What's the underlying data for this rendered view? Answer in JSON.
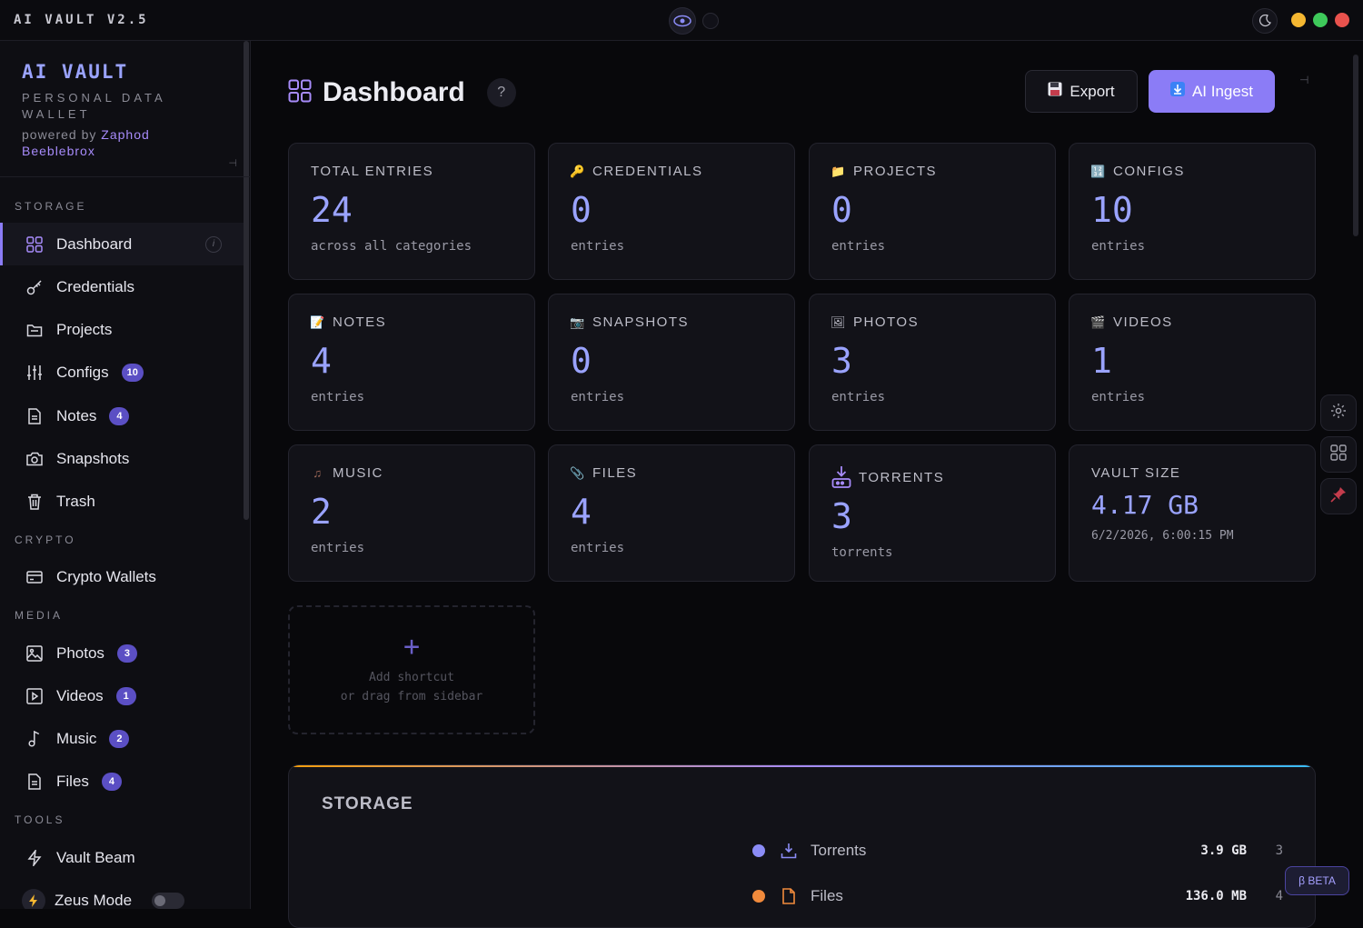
{
  "app": {
    "title": "AI VAULT V2.5"
  },
  "brand": {
    "title": "AI VAULT",
    "subtitle": "PERSONAL DATA WALLET",
    "powered_prefix": "powered by",
    "author": "Zaphod Beeblebrox"
  },
  "sidebar": {
    "sections": {
      "storage": "STORAGE",
      "crypto": "CRYPTO",
      "media": "MEDIA",
      "tools": "TOOLS"
    },
    "items": [
      {
        "label": "Dashboard",
        "icon": "grid-icon",
        "active": true
      },
      {
        "label": "Credentials",
        "icon": "key-icon"
      },
      {
        "label": "Projects",
        "icon": "folder-icon"
      },
      {
        "label": "Configs",
        "icon": "sliders-icon",
        "badge": "10"
      },
      {
        "label": "Notes",
        "icon": "document-icon",
        "badge": "4"
      },
      {
        "label": "Snapshots",
        "icon": "camera-icon"
      },
      {
        "label": "Trash",
        "icon": "trash-icon"
      },
      {
        "label": "Crypto Wallets",
        "icon": "wallet-icon"
      },
      {
        "label": "Photos",
        "icon": "image-icon",
        "badge": "3"
      },
      {
        "label": "Videos",
        "icon": "play-icon",
        "badge": "1"
      },
      {
        "label": "Music",
        "icon": "music-note-icon",
        "badge": "2"
      },
      {
        "label": "Files",
        "icon": "file-icon",
        "badge": "4"
      },
      {
        "label": "Vault Beam",
        "icon": "lightning-icon"
      },
      {
        "label": "Zeus Mode",
        "icon": "zeus-icon",
        "toggle": false
      }
    ],
    "info_glyph": "i"
  },
  "header": {
    "title": "Dashboard",
    "help": "?",
    "export_label": "Export",
    "ingest_label": "AI Ingest"
  },
  "cards": [
    {
      "label": "TOTAL ENTRIES",
      "value": "24",
      "sub": "across all categories"
    },
    {
      "label": "CREDENTIALS",
      "value": "0",
      "sub": "entries",
      "icon": "🔑"
    },
    {
      "label": "PROJECTS",
      "value": "0",
      "sub": "entries",
      "icon": "📁"
    },
    {
      "label": "CONFIGS",
      "value": "10",
      "sub": "entries",
      "icon": "🔢"
    },
    {
      "label": "NOTES",
      "value": "4",
      "sub": "entries",
      "icon": "📝"
    },
    {
      "label": "SNAPSHOTS",
      "value": "0",
      "sub": "entries",
      "icon": "📷"
    },
    {
      "label": "PHOTOS",
      "value": "3",
      "sub": "entries",
      "icon": "🖼"
    },
    {
      "label": "VIDEOS",
      "value": "1",
      "sub": "entries",
      "icon": "🎬"
    },
    {
      "label": "MUSIC",
      "value": "2",
      "sub": "entries",
      "icon": "♫"
    },
    {
      "label": "FILES",
      "value": "4",
      "sub": "entries",
      "icon": "📎"
    },
    {
      "label": "TORRENTS",
      "value": "3",
      "sub": "torrents"
    },
    {
      "label": "VAULT SIZE",
      "value": "4.17 GB",
      "sub": "6/2/2026, 6:00:15 PM"
    }
  ],
  "add_shortcut": {
    "line1": "Add shortcut",
    "line2": "or drag from sidebar",
    "plus": "+"
  },
  "storage": {
    "title": "STORAGE",
    "rows": [
      {
        "name": "Torrents",
        "size": "3.9 GB",
        "count": "3",
        "color": "#8b8cf6"
      },
      {
        "name": "Files",
        "size": "136.0 MB",
        "count": "4",
        "color": "#f08a3c"
      }
    ]
  },
  "beta": "β BETA"
}
